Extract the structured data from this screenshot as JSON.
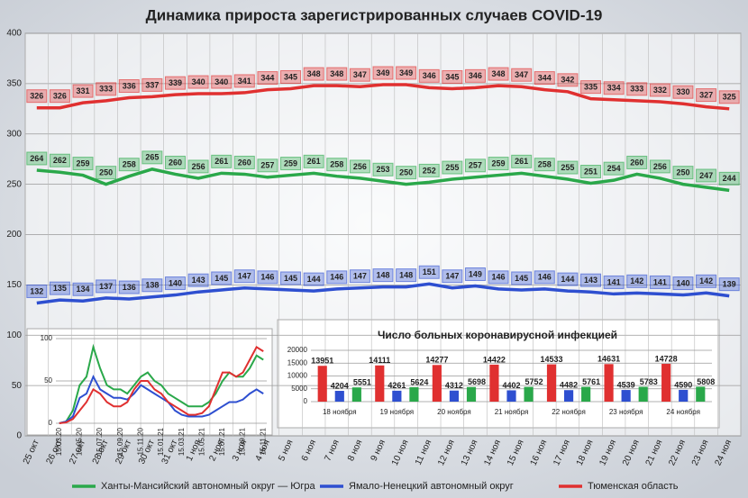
{
  "chart_data": [
    {
      "type": "line",
      "title": "Динамика прироста зарегистрированных случаев COVID-19",
      "categories": [
        "25 окт",
        "26 окт",
        "27 окт",
        "28 окт",
        "29 окт",
        "30 окт",
        "31 окт",
        "1 ноя",
        "2 ноя",
        "3 ноя",
        "4 ноя",
        "5 ноя",
        "6 ноя",
        "7 ноя",
        "8 ноя",
        "9 ноя",
        "10 ноя",
        "11 ноя",
        "12 ноя",
        "13 ноя",
        "14 ноя",
        "15 ноя",
        "16 ноя",
        "17 ноя",
        "18 ноя",
        "19 ноя",
        "20 ноя",
        "21 ноя",
        "22 ноя",
        "23 ноя",
        "24 ноя"
      ],
      "series": [
        {
          "name": "Ханты-Мансийский автономный округ — Югра",
          "color": "#2aa84a",
          "values": [
            264,
            262,
            259,
            250,
            258,
            265,
            260,
            256,
            261,
            260,
            257,
            259,
            261,
            258,
            256,
            253,
            250,
            252,
            255,
            257,
            259,
            261,
            258,
            255,
            251,
            254,
            260,
            256,
            250,
            247,
            244
          ]
        },
        {
          "name": "Ямало-Ненецкий автономный округ",
          "color": "#2e4fd0",
          "values": [
            132,
            135,
            134,
            137,
            136,
            138,
            140,
            143,
            145,
            147,
            146,
            145,
            144,
            146,
            147,
            148,
            148,
            151,
            147,
            149,
            146,
            145,
            146,
            144,
            143,
            141,
            142,
            141,
            140,
            142,
            139
          ]
        },
        {
          "name": "Тюменская область",
          "color": "#e03030",
          "values": [
            326,
            326,
            331,
            333,
            336,
            337,
            339,
            340,
            340,
            341,
            344,
            345,
            348,
            348,
            347,
            349,
            349,
            346,
            345,
            346,
            348,
            347,
            344,
            342,
            335,
            334,
            333,
            332,
            330,
            327,
            325
          ]
        }
      ],
      "ylim": [
        0,
        400
      ],
      "yticks": [
        0,
        50,
        100,
        150,
        200,
        250,
        300,
        350,
        400
      ],
      "grid": true,
      "legend": "bottom",
      "data_labels": true
    },
    {
      "type": "line",
      "categories": [
        "15.03.20",
        null,
        null,
        "15.05.20",
        null,
        null,
        "15.07.20",
        null,
        null,
        "15.09.20",
        null,
        null,
        "15.11.20",
        null,
        null,
        "15.01.21",
        null,
        null,
        "15.03.21",
        null,
        null,
        "15.05.21",
        null,
        null,
        "15.07.21",
        null,
        null,
        "15.09.21",
        null,
        null,
        "15.11.21"
      ],
      "series": [
        {
          "color": "#2aa84a",
          "values": [
            0,
            2,
            15,
            45,
            55,
            90,
            65,
            45,
            40,
            40,
            35,
            45,
            55,
            60,
            50,
            45,
            35,
            30,
            25,
            20,
            20,
            20,
            25,
            35,
            50,
            60,
            55,
            55,
            65,
            80,
            75
          ]
        },
        {
          "color": "#2e4fd0",
          "values": [
            0,
            2,
            8,
            30,
            35,
            55,
            40,
            35,
            30,
            30,
            28,
            35,
            45,
            40,
            35,
            30,
            25,
            15,
            10,
            8,
            8,
            8,
            10,
            15,
            20,
            25,
            25,
            28,
            35,
            40,
            35
          ]
        },
        {
          "color": "#e03030",
          "values": [
            0,
            1,
            5,
            15,
            25,
            40,
            35,
            25,
            20,
            20,
            25,
            40,
            50,
            50,
            40,
            35,
            25,
            20,
            15,
            10,
            10,
            12,
            20,
            40,
            60,
            60,
            55,
            60,
            75,
            90,
            85
          ]
        }
      ],
      "ylim": [
        0,
        100
      ],
      "yticks": [
        0,
        50,
        100
      ],
      "grid": true
    },
    {
      "type": "bar",
      "title": "Число больных коронавирусной инфекцией",
      "categories": [
        "18 ноября",
        "19 ноября",
        "20 ноября",
        "21 ноября",
        "22 ноября",
        "23 ноября",
        "24 ноября"
      ],
      "series": [
        {
          "color": "#e03030",
          "values": [
            13951,
            14111,
            14277,
            14422,
            14533,
            14631,
            14728
          ]
        },
        {
          "color": "#2e4fd0",
          "values": [
            4204,
            4261,
            4312,
            4402,
            4482,
            4539,
            4590
          ]
        },
        {
          "color": "#2aa84a",
          "values": [
            5551,
            5624,
            5698,
            5752,
            5761,
            5783,
            5808
          ]
        }
      ],
      "ylim": [
        0,
        20000
      ],
      "yticks": [
        0,
        5000,
        10000,
        15000,
        20000
      ],
      "grid": true,
      "data_labels": true
    }
  ]
}
